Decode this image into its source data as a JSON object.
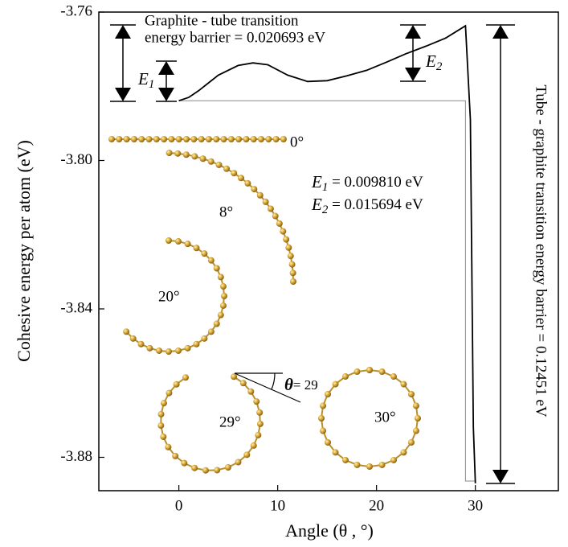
{
  "chart_data": {
    "type": "line",
    "x_label": "Angle (θ , °)",
    "y_label": "Cohesive energy per atom (eV)",
    "xlim": [
      -8.1,
      38.4
    ],
    "ylim": [
      -3.889,
      -3.76
    ],
    "xticks": [
      0,
      10,
      20,
      30
    ],
    "yticks": [
      -3.76,
      {
        "value": -3.8,
        "label": "-3.80"
      },
      -3.84,
      -3.88
    ],
    "series": [
      {
        "color": "#000000",
        "x": [
          0,
          1,
          2,
          4,
          6,
          7.5,
          9,
          11,
          13,
          15,
          17,
          19,
          21,
          23,
          25,
          27,
          29,
          29.5,
          29.8,
          30
        ],
        "values": [
          -3.7839,
          -3.783,
          -3.7812,
          -3.777,
          -3.7744,
          -3.7737,
          -3.7742,
          -3.777,
          -3.7787,
          -3.7785,
          -3.7772,
          -3.7757,
          -3.7735,
          -3.7712,
          -3.7692,
          -3.767,
          -3.7637,
          -3.789,
          -3.872,
          -3.887
        ]
      }
    ],
    "annotations": {
      "graphite_tube_line1": "Graphite - tube transition",
      "graphite_tube_line2": "energy barrier = 0.020693 eV",
      "tube_graphite": "Tube - graphite transition energy barrier = 0.12451 eV",
      "e1_symbol": {
        "symbol": "E",
        "subscript": "1"
      },
      "e2_symbol": {
        "symbol": "E",
        "subscript": "2"
      },
      "e1_value": {
        "symbol": "E",
        "subscript": "1",
        "text": " = 0.009810 eV"
      },
      "e2_value": {
        "symbol": "E",
        "subscript": "2",
        "text": " = 0.015694 eV"
      },
      "angle_labels": [
        "0°",
        "8°",
        "20°",
        "29°",
        "30°"
      ],
      "theta_symbol": "θ",
      "theta_text": "= 29"
    }
  }
}
